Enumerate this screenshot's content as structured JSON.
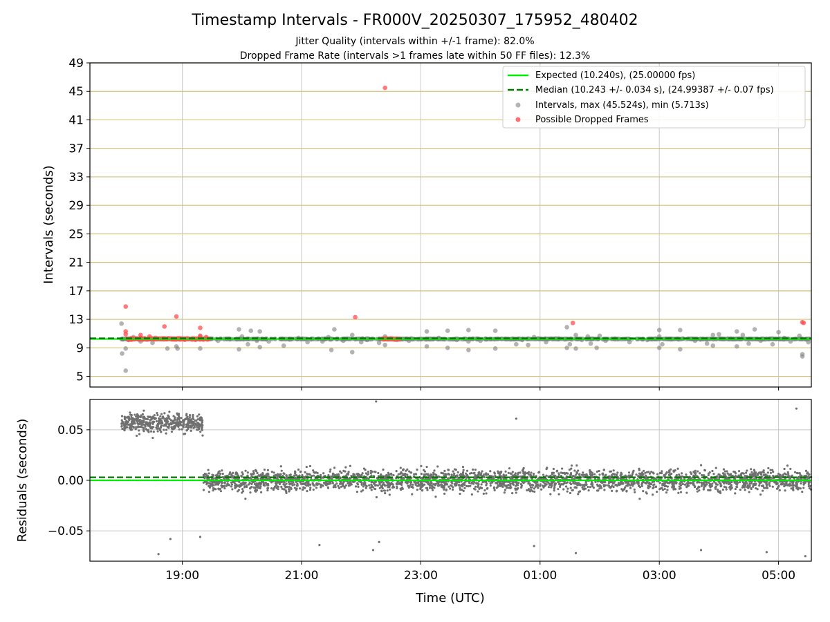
{
  "chart_data": [
    {
      "type": "scatter",
      "title": "Timestamp Intervals - FR000V_20250307_175952_480402",
      "subtitle_lines": [
        "Jitter Quality (intervals within +/-1 frame): 82.0%",
        "Dropped Frame Rate (intervals >1 frames late within 50 FF files): 12.3%"
      ],
      "ylabel": "Intervals (seconds)",
      "ylim": [
        3.5,
        49
      ],
      "xlim_hours": [
        17.45,
        29.55
      ],
      "yticks": [
        {
          "v": 5,
          "label": "5"
        },
        {
          "v": 9,
          "label": "9"
        },
        {
          "v": 13,
          "label": "13"
        },
        {
          "v": 17,
          "label": "17"
        },
        {
          "v": 21,
          "label": "21"
        },
        {
          "v": 25,
          "label": "25"
        },
        {
          "v": 29,
          "label": "29"
        },
        {
          "v": 33,
          "label": "33"
        },
        {
          "v": 37,
          "label": "37"
        },
        {
          "v": 41,
          "label": "41"
        },
        {
          "v": 45,
          "label": "45"
        },
        {
          "v": 49,
          "label": "49"
        }
      ],
      "grid": "horizontal golden lines at y ticks, vertical grey lines at x ticks",
      "expected_interval": 10.24,
      "median_interval": 10.243,
      "legend_position": "upper right",
      "legend": [
        {
          "label": "Expected (10.240s), (25.00000 fps)",
          "kind": "solid-line",
          "color": "#00ee00"
        },
        {
          "label": "Median (10.243 +/- 0.034 s), (24.99387 +/- 0.07 fps)",
          "kind": "dashed-line",
          "color": "#007700"
        },
        {
          "label": "Intervals, max (45.524s), min (5.713s)",
          "kind": "dot",
          "color": "#808080"
        },
        {
          "label": "Possible Dropped Frames",
          "kind": "dot",
          "color": "#ff4d4d"
        }
      ],
      "series": [
        {
          "name": "Intervals, max (45.524s), min (5.713s)",
          "color": "#808080",
          "points": [
            [
              17.98,
              12.4
            ],
            [
              17.99,
              8.2
            ],
            [
              18.05,
              5.8
            ],
            [
              18.05,
              8.9
            ],
            [
              18.1,
              10.1
            ],
            [
              18.18,
              10.5
            ],
            [
              18.3,
              9.9
            ],
            [
              18.5,
              9.7
            ],
            [
              18.55,
              10.4
            ],
            [
              18.7,
              10.2
            ],
            [
              18.75,
              8.9
            ],
            [
              18.9,
              9.2
            ],
            [
              18.92,
              8.9
            ],
            [
              19.3,
              8.9
            ],
            [
              19.3,
              10.6
            ],
            [
              19.6,
              10.0
            ],
            [
              19.8,
              10.2
            ],
            [
              19.95,
              11.6
            ],
            [
              19.95,
              8.8
            ],
            [
              20.0,
              10.6
            ],
            [
              20.1,
              9.5
            ],
            [
              20.15,
              11.4
            ],
            [
              20.25,
              10.0
            ],
            [
              20.3,
              11.3
            ],
            [
              20.3,
              9.1
            ],
            [
              20.45,
              9.9
            ],
            [
              20.7,
              9.3
            ],
            [
              20.95,
              10.4
            ],
            [
              21.1,
              9.8
            ],
            [
              21.25,
              10.2
            ],
            [
              21.35,
              9.9
            ],
            [
              21.45,
              10.5
            ],
            [
              21.5,
              8.7
            ],
            [
              21.55,
              11.6
            ],
            [
              21.7,
              10.0
            ],
            [
              21.85,
              8.4
            ],
            [
              21.85,
              10.8
            ],
            [
              22.0,
              9.8
            ],
            [
              22.1,
              10.1
            ],
            [
              22.3,
              9.7
            ],
            [
              22.4,
              10.6
            ],
            [
              22.4,
              9.4
            ],
            [
              22.6,
              10.1
            ],
            [
              22.8,
              10.0
            ],
            [
              23.1,
              9.2
            ],
            [
              23.1,
              11.3
            ],
            [
              23.3,
              10.4
            ],
            [
              23.45,
              9.0
            ],
            [
              23.45,
              11.4
            ],
            [
              23.6,
              10.1
            ],
            [
              23.8,
              9.9
            ],
            [
              23.8,
              11.5
            ],
            [
              23.8,
              8.7
            ],
            [
              24.0,
              10.0
            ],
            [
              24.1,
              10.2
            ],
            [
              24.25,
              11.4
            ],
            [
              24.25,
              8.9
            ],
            [
              24.5,
              10.2
            ],
            [
              24.6,
              9.5
            ],
            [
              24.7,
              10.1
            ],
            [
              24.8,
              9.4
            ],
            [
              24.9,
              10.5
            ],
            [
              25.1,
              9.8
            ],
            [
              25.3,
              10.2
            ],
            [
              25.45,
              11.9
            ],
            [
              25.45,
              9.0
            ],
            [
              25.5,
              9.5
            ],
            [
              25.6,
              8.9
            ],
            [
              25.6,
              10.8
            ],
            [
              25.7,
              10.1
            ],
            [
              25.8,
              10.6
            ],
            [
              25.85,
              9.6
            ],
            [
              25.95,
              9.0
            ],
            [
              26.0,
              10.7
            ],
            [
              26.1,
              10.0
            ],
            [
              26.3,
              10.2
            ],
            [
              26.5,
              9.8
            ],
            [
              26.8,
              10.1
            ],
            [
              27.0,
              11.5
            ],
            [
              27.0,
              10.6
            ],
            [
              27.0,
              9.0
            ],
            [
              27.05,
              9.5
            ],
            [
              27.2,
              10.2
            ],
            [
              27.35,
              11.5
            ],
            [
              27.35,
              8.8
            ],
            [
              27.4,
              10.3
            ],
            [
              27.6,
              10.0
            ],
            [
              27.8,
              9.6
            ],
            [
              27.9,
              10.8
            ],
            [
              27.9,
              9.3
            ],
            [
              28.0,
              10.9
            ],
            [
              28.15,
              10.3
            ],
            [
              28.3,
              11.3
            ],
            [
              28.3,
              9.2
            ],
            [
              28.4,
              10.8
            ],
            [
              28.5,
              9.6
            ],
            [
              28.55,
              10.2
            ],
            [
              28.6,
              11.6
            ],
            [
              28.7,
              10.0
            ],
            [
              28.9,
              9.5
            ],
            [
              29.0,
              11.2
            ],
            [
              29.1,
              10.4
            ],
            [
              29.2,
              9.9
            ],
            [
              29.35,
              10.7
            ],
            [
              29.4,
              7.8
            ],
            [
              29.4,
              8.1
            ],
            [
              29.5,
              9.8
            ]
          ]
        },
        {
          "name": "Possible Dropped Frames",
          "color": "#ff4d4d",
          "points": [
            [
              18.05,
              14.8
            ],
            [
              18.05,
              10.9
            ],
            [
              18.05,
              11.3
            ],
            [
              18.3,
              10.8
            ],
            [
              18.3,
              10.4
            ],
            [
              18.45,
              10.6
            ],
            [
              18.7,
              12.0
            ],
            [
              18.9,
              13.4
            ],
            [
              19.3,
              11.8
            ],
            [
              19.3,
              10.7
            ],
            [
              19.4,
              10.5
            ],
            [
              21.9,
              13.3
            ],
            [
              22.4,
              45.5
            ],
            [
              25.55,
              12.5
            ],
            [
              29.4,
              12.6
            ],
            [
              29.42,
              12.5
            ]
          ]
        }
      ],
      "dense_band": {
        "name": "Possible Dropped Frames",
        "x_range_hours": [
          18.05,
          19.45
        ],
        "y_value": 10.25
      },
      "dense_band_2": {
        "name": "Possible Dropped Frames",
        "x_range_hours": [
          22.35,
          22.65
        ],
        "y_value": 10.25
      }
    },
    {
      "type": "scatter",
      "ylabel": "Residuals (seconds)",
      "xlabel": "Time (UTC)",
      "ylim": [
        -0.08,
        0.08
      ],
      "yticks": [
        {
          "v": 0.05,
          "label": "0.05"
        },
        {
          "v": 0.0,
          "label": "0.00"
        },
        {
          "v": -0.05,
          "label": "−0.05"
        }
      ],
      "xticks": [
        {
          "h": 19,
          "label": "19:00"
        },
        {
          "h": 21,
          "label": "21:00"
        },
        {
          "h": 23,
          "label": "23:00"
        },
        {
          "h": 25,
          "label": "01:00"
        },
        {
          "h": 27,
          "label": "03:00"
        },
        {
          "h": 29,
          "label": "05:00"
        }
      ],
      "grid": "grey lines at both axes ticks",
      "expected_line": 0.0,
      "median_line": 0.003,
      "series": [
        {
          "name": "Residuals",
          "color": "#707070",
          "segments": [
            {
              "x_range_hours": [
                17.98,
                19.35
              ],
              "center": 0.057,
              "spread": 0.018,
              "count": 440
            },
            {
              "x_range_hours": [
                19.35,
                29.55
              ],
              "center": 0.0,
              "spread": 0.02,
              "count": 3000
            }
          ],
          "outliers": [
            [
              18.6,
              -0.073
            ],
            [
              18.8,
              -0.058
            ],
            [
              19.3,
              -0.056
            ],
            [
              22.2,
              -0.069
            ],
            [
              22.3,
              -0.061
            ],
            [
              21.3,
              -0.064
            ],
            [
              24.9,
              -0.065
            ],
            [
              25.6,
              -0.072
            ],
            [
              27.7,
              -0.069
            ],
            [
              28.8,
              -0.071
            ],
            [
              29.45,
              -0.075
            ],
            [
              22.25,
              0.078
            ],
            [
              29.3,
              0.071
            ],
            [
              24.6,
              0.061
            ]
          ]
        }
      ]
    }
  ],
  "colors": {
    "expected": "#00ee00",
    "median": "#007700",
    "intervals": "#808080",
    "dropped": "#ff4d4d",
    "hgrid_top": "#d4c077",
    "grid": "#c8c8c8"
  }
}
